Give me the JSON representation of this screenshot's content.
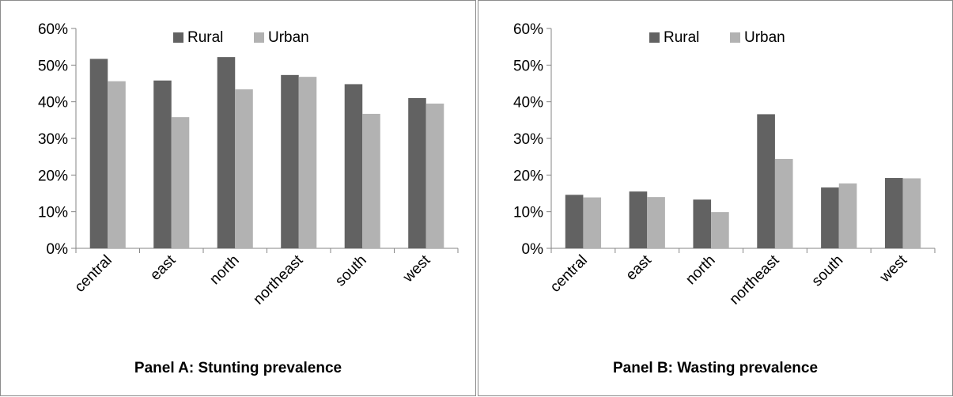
{
  "chart_data": [
    {
      "type": "bar",
      "title": "Panel A: Stunting prevalence",
      "xlabel": "",
      "ylabel": "",
      "categories": [
        "central",
        "east",
        "north",
        "northeast",
        "south",
        "west"
      ],
      "y_ticks": [
        "0%",
        "10%",
        "20%",
        "30%",
        "40%",
        "50%",
        "60%"
      ],
      "ylim": [
        0,
        60
      ],
      "unit": "%",
      "grid": false,
      "legend_position": "top",
      "series": [
        {
          "name": "Rural",
          "color": "#626262",
          "values": [
            51.7,
            45.8,
            52.2,
            47.3,
            44.8,
            41.0
          ]
        },
        {
          "name": "Urban",
          "color": "#b2b2b2",
          "values": [
            45.6,
            35.8,
            43.4,
            46.8,
            36.7,
            39.5
          ]
        }
      ]
    },
    {
      "type": "bar",
      "title": "Panel B: Wasting prevalence",
      "xlabel": "",
      "ylabel": "",
      "categories": [
        "central",
        "east",
        "north",
        "northeast",
        "south",
        "west"
      ],
      "y_ticks": [
        "0%",
        "10%",
        "20%",
        "30%",
        "40%",
        "50%",
        "60%"
      ],
      "ylim": [
        0,
        60
      ],
      "unit": "%",
      "grid": false,
      "legend_position": "top",
      "series": [
        {
          "name": "Rural",
          "color": "#626262",
          "values": [
            14.6,
            15.5,
            13.3,
            36.6,
            16.6,
            19.2
          ]
        },
        {
          "name": "Urban",
          "color": "#b2b2b2",
          "values": [
            13.9,
            14.0,
            9.9,
            24.4,
            17.7,
            19.1
          ]
        }
      ]
    }
  ]
}
